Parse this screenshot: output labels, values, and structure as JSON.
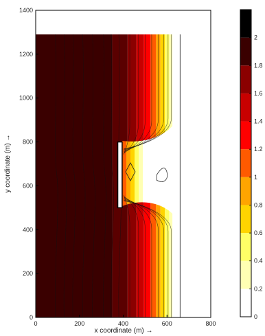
{
  "chart_data": {
    "type": "heatmap",
    "title": "",
    "xlabel": "x coordinate (m) →",
    "ylabel": "y coordinate (m) →",
    "xlim": [
      0,
      800
    ],
    "ylim": [
      0,
      1400
    ],
    "x_ticks": [
      "0",
      "200",
      "400",
      "600",
      "800"
    ],
    "y_ticks": [
      "0",
      "200",
      "400",
      "600",
      "800",
      "1000",
      "1200",
      "1400"
    ],
    "domain": {
      "x": [
        0,
        660
      ],
      "y": [
        0,
        1290
      ]
    },
    "breakwater": {
      "x": [
        375,
        395
      ],
      "y": [
        500,
        800
      ]
    },
    "field_description": "contours roughly vertical; high values (~2) offshore on left, decreasing toward shore at x~650; sheltered low zone behind structure between y~500 and y~800",
    "colorbar": {
      "ticks": [
        "0",
        "0.2",
        "0.4",
        "0.6",
        "0.8",
        "1",
        "1.2",
        "1.4",
        "1.6",
        "1.8",
        "2"
      ],
      "range": [
        0,
        2.2
      ],
      "bands": [
        {
          "min": 0.0,
          "max": 0.2,
          "color": "#ffffff"
        },
        {
          "min": 0.2,
          "max": 0.4,
          "color": "#ffffb3"
        },
        {
          "min": 0.4,
          "max": 0.6,
          "color": "#ffff66"
        },
        {
          "min": 0.6,
          "max": 0.8,
          "color": "#ffd400"
        },
        {
          "min": 0.8,
          "max": 1.0,
          "color": "#ffa500"
        },
        {
          "min": 1.0,
          "max": 1.2,
          "color": "#ff5a00"
        },
        {
          "min": 1.2,
          "max": 1.4,
          "color": "#ff0000"
        },
        {
          "min": 1.4,
          "max": 1.6,
          "color": "#c80000"
        },
        {
          "min": 1.6,
          "max": 1.8,
          "color": "#8b0000"
        },
        {
          "min": 1.8,
          "max": 2.0,
          "color": "#3a0000"
        },
        {
          "min": 2.0,
          "max": 2.2,
          "color": "#000000"
        }
      ]
    },
    "field_bands_x": [
      {
        "x0": 0,
        "x1": 350,
        "color": "#3a0000"
      },
      {
        "x0": 350,
        "x1": 420,
        "color": "#5a0000"
      },
      {
        "x0": 420,
        "x1": 460,
        "color": "#8b0000"
      },
      {
        "x0": 460,
        "x1": 495,
        "color": "#c80000"
      },
      {
        "x0": 495,
        "x1": 525,
        "color": "#ff0000"
      },
      {
        "x0": 525,
        "x1": 550,
        "color": "#ff5a00"
      },
      {
        "x0": 550,
        "x1": 570,
        "color": "#ffa500"
      },
      {
        "x0": 570,
        "x1": 590,
        "color": "#ffd400"
      },
      {
        "x0": 590,
        "x1": 610,
        "color": "#ffff66"
      },
      {
        "x0": 610,
        "x1": 625,
        "color": "#ffffb3"
      },
      {
        "x0": 625,
        "x1": 660,
        "color": "#ffffff"
      }
    ]
  }
}
